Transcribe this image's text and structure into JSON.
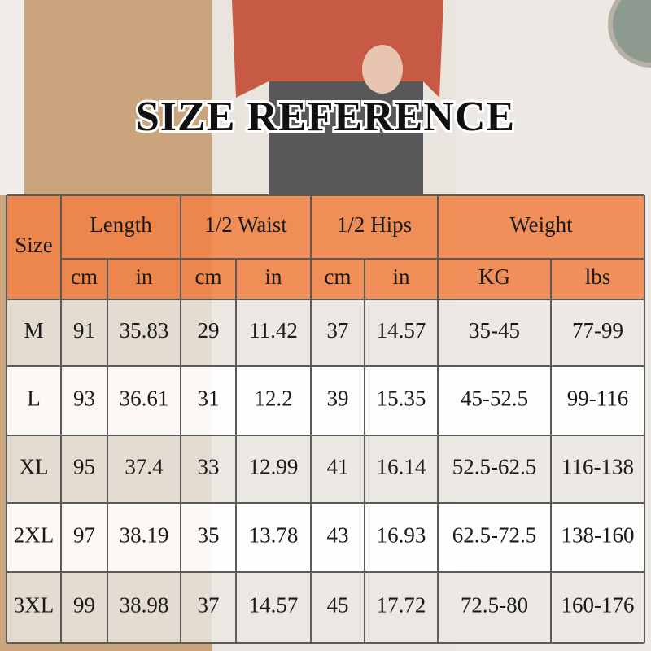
{
  "title": "SIZE REFERENCE",
  "table": {
    "header_groups": [
      "Size",
      "Length",
      "1/2 Waist",
      "1/2 Hips",
      "Weight"
    ],
    "units": [
      "cm",
      "in",
      "cm",
      "in",
      "cm",
      "in",
      "KG",
      "lbs"
    ],
    "rows": [
      [
        "M",
        "91",
        "35.83",
        "29",
        "11.42",
        "37",
        "14.57",
        "35-45",
        "77-99"
      ],
      [
        "L",
        "93",
        "36.61",
        "31",
        "12.2",
        "39",
        "15.35",
        "45-52.5",
        "99-116"
      ],
      [
        "XL",
        "95",
        "37.4",
        "33",
        "12.99",
        "41",
        "16.14",
        "52.5-62.5",
        "116-138"
      ],
      [
        "2XL",
        "97",
        "38.19",
        "35",
        "13.78",
        "43",
        "16.93",
        "62.5-72.5",
        "138-160"
      ],
      [
        "3XL",
        "99",
        "38.98",
        "37",
        "14.57",
        "45",
        "17.72",
        "72.5-80",
        "160-176"
      ]
    ]
  }
}
